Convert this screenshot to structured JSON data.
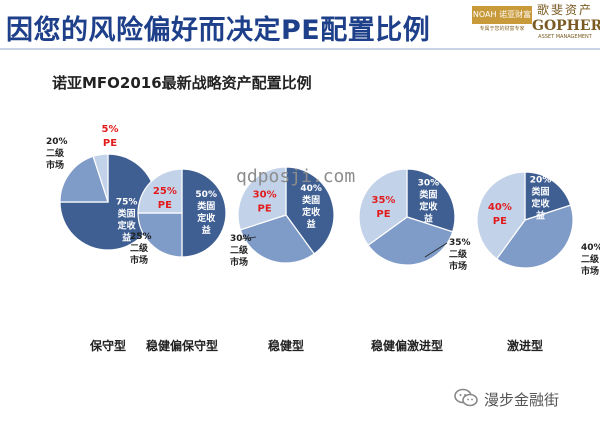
{
  "header": {
    "title": "因您的风险偏好而决定PE配置比例",
    "subtitle": "诺亚MFO2016最新战略资产配置比例"
  },
  "logos": {
    "noah_mark": "NOAH 诺亚财富",
    "noah_tagline": "专属于您的财富专家",
    "gopher_cn": "歌斐资产",
    "gopher_en": "GOPHER",
    "gopher_sub": "ASSET MANAGEMENT"
  },
  "watermark": "qdposji.com",
  "footer": {
    "wechat_label": "漫步金融街"
  },
  "colors": {
    "dark": "#3f5f93",
    "mid": "#7f9bc8",
    "light": "#c2d2e9",
    "pe": "#e21c1c",
    "title": "#1e3f8a"
  },
  "chart_data": {
    "type": "pie",
    "series_labels": [
      "PE",
      "类固定收益",
      "二级市场"
    ],
    "charts": [
      {
        "name": "保守型",
        "slices": [
          {
            "label": "PE",
            "value": 5,
            "display": "5%"
          },
          {
            "label": "类固定收益",
            "value": 75,
            "display": "75%"
          },
          {
            "label": "二级市场",
            "value": 20,
            "display": "20%"
          }
        ]
      },
      {
        "name": "稳健偏保守型",
        "slices": [
          {
            "label": "PE",
            "value": 25,
            "display": "25%"
          },
          {
            "label": "类固定收益",
            "value": 50,
            "display": "50%"
          },
          {
            "label": "二级市场",
            "value": 25,
            "display": "25%"
          }
        ]
      },
      {
        "name": "稳健型",
        "slices": [
          {
            "label": "PE",
            "value": 30,
            "display": "30%"
          },
          {
            "label": "类固定收益",
            "value": 40,
            "display": "40%"
          },
          {
            "label": "二级市场",
            "value": 30,
            "display": "30%"
          }
        ]
      },
      {
        "name": "稳健偏激进型",
        "slices": [
          {
            "label": "PE",
            "value": 35,
            "display": "35%"
          },
          {
            "label": "类固定收益",
            "value": 30,
            "display": "30%"
          },
          {
            "label": "二级市场",
            "value": 35,
            "display": "35%"
          }
        ]
      },
      {
        "name": "激进型",
        "slices": [
          {
            "label": "PE",
            "value": 40,
            "display": "40%"
          },
          {
            "label": "类固定收益",
            "value": 20,
            "display": "20%"
          },
          {
            "label": "二级市场",
            "value": 40,
            "display": "40%"
          }
        ]
      }
    ]
  }
}
